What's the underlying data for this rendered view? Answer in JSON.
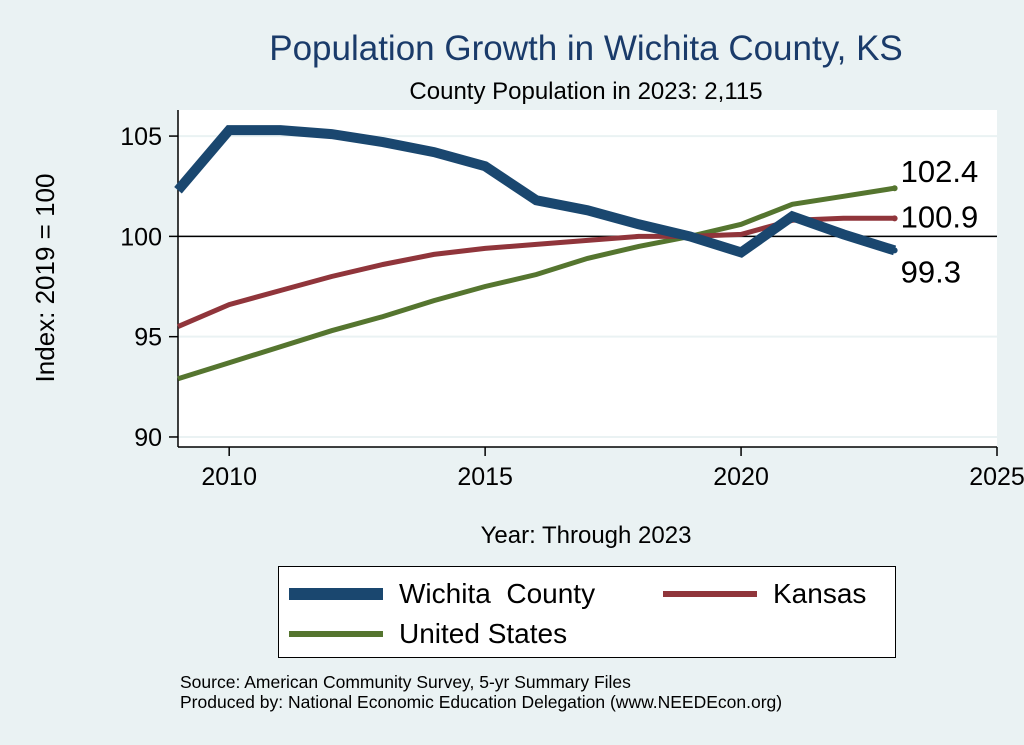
{
  "chart_data": {
    "type": "line",
    "title": "Population Growth in Wichita County, KS",
    "subtitle": "County Population in 2023: 2,115",
    "xlabel": "Year: Through 2023",
    "ylabel": "Index: 2019 = 100",
    "xlim": [
      2009,
      2025
    ],
    "ylim": [
      89.5,
      106.3
    ],
    "xticks": [
      2010,
      2015,
      2020,
      2025
    ],
    "yticks": [
      90,
      95,
      100,
      105
    ],
    "reference_line": 100,
    "x": [
      2009,
      2010,
      2011,
      2012,
      2013,
      2014,
      2015,
      2016,
      2017,
      2018,
      2019,
      2020,
      2021,
      2022,
      2023
    ],
    "series": [
      {
        "name": "Wichita  County",
        "color": "#1a476f",
        "values": [
          102.3,
          105.3,
          105.3,
          105.1,
          104.7,
          104.2,
          103.5,
          101.8,
          101.3,
          100.6,
          100.0,
          99.2,
          101.0,
          100.1,
          99.3
        ],
        "end_label": "99.3"
      },
      {
        "name": "Kansas",
        "color": "#90353b",
        "values": [
          95.5,
          96.6,
          97.3,
          98.0,
          98.6,
          99.1,
          99.4,
          99.6,
          99.8,
          100.0,
          100.0,
          100.1,
          100.8,
          100.9,
          100.9
        ],
        "end_label": "100.9"
      },
      {
        "name": "United States",
        "color": "#55752f",
        "values": [
          92.9,
          93.7,
          94.5,
          95.3,
          96.0,
          96.8,
          97.5,
          98.1,
          98.9,
          99.5,
          100.0,
          100.6,
          101.6,
          102.0,
          102.4
        ],
        "end_label": "102.4"
      }
    ],
    "legend": {
      "position": "bottom",
      "entries": [
        "Wichita  County",
        "Kansas",
        "United States"
      ]
    }
  },
  "source": {
    "line1": "Source: American Community Survey, 5-yr Summary Files",
    "line2": "Produced by: National Economic Education Delegation (www.NEEDEcon.org)"
  }
}
